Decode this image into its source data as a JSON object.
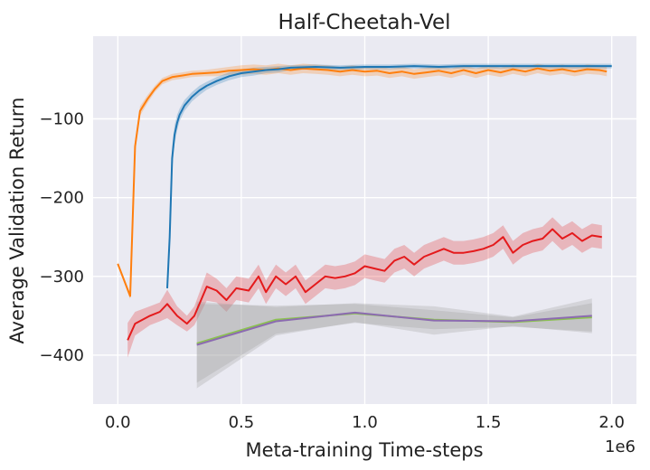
{
  "chart_data": {
    "type": "line",
    "title": "Half-Cheetah-Vel",
    "xlabel": "Meta-training Time-steps",
    "ylabel": "Average Validation Return",
    "x_offset_label": "1e6",
    "xlim": [
      -0.1,
      2.1
    ],
    "ylim": [
      -462,
      5
    ],
    "x_ticks": [
      0.0,
      0.5,
      1.0,
      1.5,
      2.0
    ],
    "x_tick_labels": [
      "0.0",
      "0.5",
      "1.0",
      "1.5",
      "2.0"
    ],
    "y_ticks": [
      -100,
      -200,
      -300,
      -400
    ],
    "y_tick_labels": [
      "−100",
      "−200",
      "−300",
      "−400"
    ],
    "grid": true,
    "background": "#eaeaf2",
    "series": [
      {
        "name": "orange",
        "color": "#ff7f0e",
        "x": [
          0.0,
          0.05,
          0.07,
          0.09,
          0.12,
          0.15,
          0.18,
          0.22,
          0.26,
          0.3,
          0.35,
          0.4,
          0.45,
          0.5,
          0.55,
          0.6,
          0.65,
          0.7,
          0.75,
          0.8,
          0.85,
          0.9,
          0.95,
          1.0,
          1.05,
          1.1,
          1.15,
          1.2,
          1.25,
          1.3,
          1.35,
          1.4,
          1.45,
          1.5,
          1.55,
          1.6,
          1.65,
          1.7,
          1.75,
          1.8,
          1.85,
          1.9,
          1.95,
          1.98
        ],
        "y": [
          -284,
          -325,
          -135,
          -90,
          -75,
          -62,
          -52,
          -47,
          -45,
          -43,
          -42,
          -41,
          -39,
          -38,
          -37,
          -38,
          -36,
          -38,
          -36,
          -37,
          -38,
          -40,
          -38,
          -40,
          -39,
          -42,
          -40,
          -43,
          -41,
          -39,
          -42,
          -38,
          -42,
          -38,
          -41,
          -37,
          -40,
          -36,
          -39,
          -37,
          -40,
          -37,
          -38,
          -40
        ],
        "band": [
          2,
          4,
          8,
          6,
          5,
          4,
          4,
          4,
          4,
          4,
          4,
          5,
          5,
          6,
          6,
          6,
          6,
          6,
          6,
          6,
          6,
          6,
          6,
          6,
          6,
          6,
          6,
          6,
          6,
          6,
          6,
          6,
          6,
          6,
          6,
          6,
          6,
          6,
          6,
          6,
          6,
          6,
          6,
          6
        ]
      },
      {
        "name": "blue",
        "color": "#1f77b4",
        "x": [
          0.2,
          0.21,
          0.22,
          0.23,
          0.24,
          0.25,
          0.27,
          0.3,
          0.33,
          0.36,
          0.4,
          0.45,
          0.5,
          0.55,
          0.6,
          0.65,
          0.7,
          0.8,
          0.9,
          1.0,
          1.1,
          1.2,
          1.3,
          1.4,
          1.5,
          1.6,
          1.7,
          1.8,
          1.9,
          2.0
        ],
        "y": [
          -315,
          -250,
          -150,
          -120,
          -105,
          -95,
          -83,
          -72,
          -64,
          -58,
          -52,
          -46,
          -42,
          -40,
          -38,
          -37,
          -35,
          -34,
          -35,
          -34,
          -34,
          -33,
          -34,
          -33,
          -33,
          -33,
          -33,
          -33,
          -33,
          -33
        ],
        "band": [
          5,
          15,
          15,
          12,
          10,
          8,
          7,
          6,
          6,
          5,
          5,
          5,
          5,
          5,
          4,
          4,
          3,
          3,
          3,
          3,
          3,
          3,
          3,
          3,
          3,
          3,
          3,
          3,
          3,
          3
        ]
      },
      {
        "name": "red",
        "color": "#e41a1c",
        "x": [
          0.04,
          0.07,
          0.13,
          0.17,
          0.2,
          0.24,
          0.28,
          0.31,
          0.36,
          0.4,
          0.44,
          0.48,
          0.53,
          0.57,
          0.6,
          0.64,
          0.68,
          0.72,
          0.76,
          0.8,
          0.84,
          0.88,
          0.92,
          0.96,
          1.0,
          1.04,
          1.08,
          1.12,
          1.16,
          1.2,
          1.24,
          1.28,
          1.32,
          1.36,
          1.4,
          1.44,
          1.48,
          1.52,
          1.56,
          1.6,
          1.64,
          1.68,
          1.72,
          1.76,
          1.8,
          1.84,
          1.88,
          1.92,
          1.96
        ],
        "y": [
          -381,
          -360,
          -350,
          -345,
          -335,
          -350,
          -360,
          -350,
          -313,
          -318,
          -330,
          -315,
          -318,
          -300,
          -320,
          -300,
          -310,
          -300,
          -320,
          -310,
          -300,
          -302,
          -300,
          -296,
          -287,
          -290,
          -293,
          -280,
          -275,
          -285,
          -275,
          -270,
          -265,
          -270,
          -270,
          -268,
          -265,
          -260,
          -250,
          -270,
          -260,
          -255,
          -252,
          -240,
          -252,
          -245,
          -255,
          -248,
          -250
        ],
        "band": [
          22,
          15,
          12,
          12,
          18,
          12,
          10,
          12,
          18,
          15,
          15,
          15,
          15,
          15,
          15,
          15,
          15,
          15,
          15,
          15,
          15,
          15,
          15,
          15,
          15,
          15,
          15,
          15,
          15,
          15,
          15,
          15,
          15,
          15,
          15,
          15,
          15,
          15,
          15,
          15,
          15,
          15,
          15,
          15,
          15,
          15,
          15,
          15,
          15
        ]
      },
      {
        "name": "green",
        "color": "#8cc152",
        "x": [
          0.32,
          0.64,
          0.96,
          1.28,
          1.6,
          1.92
        ],
        "y": [
          -385,
          -355,
          -347,
          -355,
          -358,
          -352
        ],
        "band": [
          50,
          18,
          12,
          12,
          6,
          18
        ]
      },
      {
        "name": "purple",
        "color": "#8c6bb1",
        "x": [
          0.32,
          0.64,
          0.96,
          1.28,
          1.6,
          1.92
        ],
        "y": [
          -387,
          -357,
          -346,
          -356,
          -357,
          -350
        ],
        "band": [
          55,
          18,
          12,
          18,
          6,
          22
        ]
      }
    ]
  }
}
